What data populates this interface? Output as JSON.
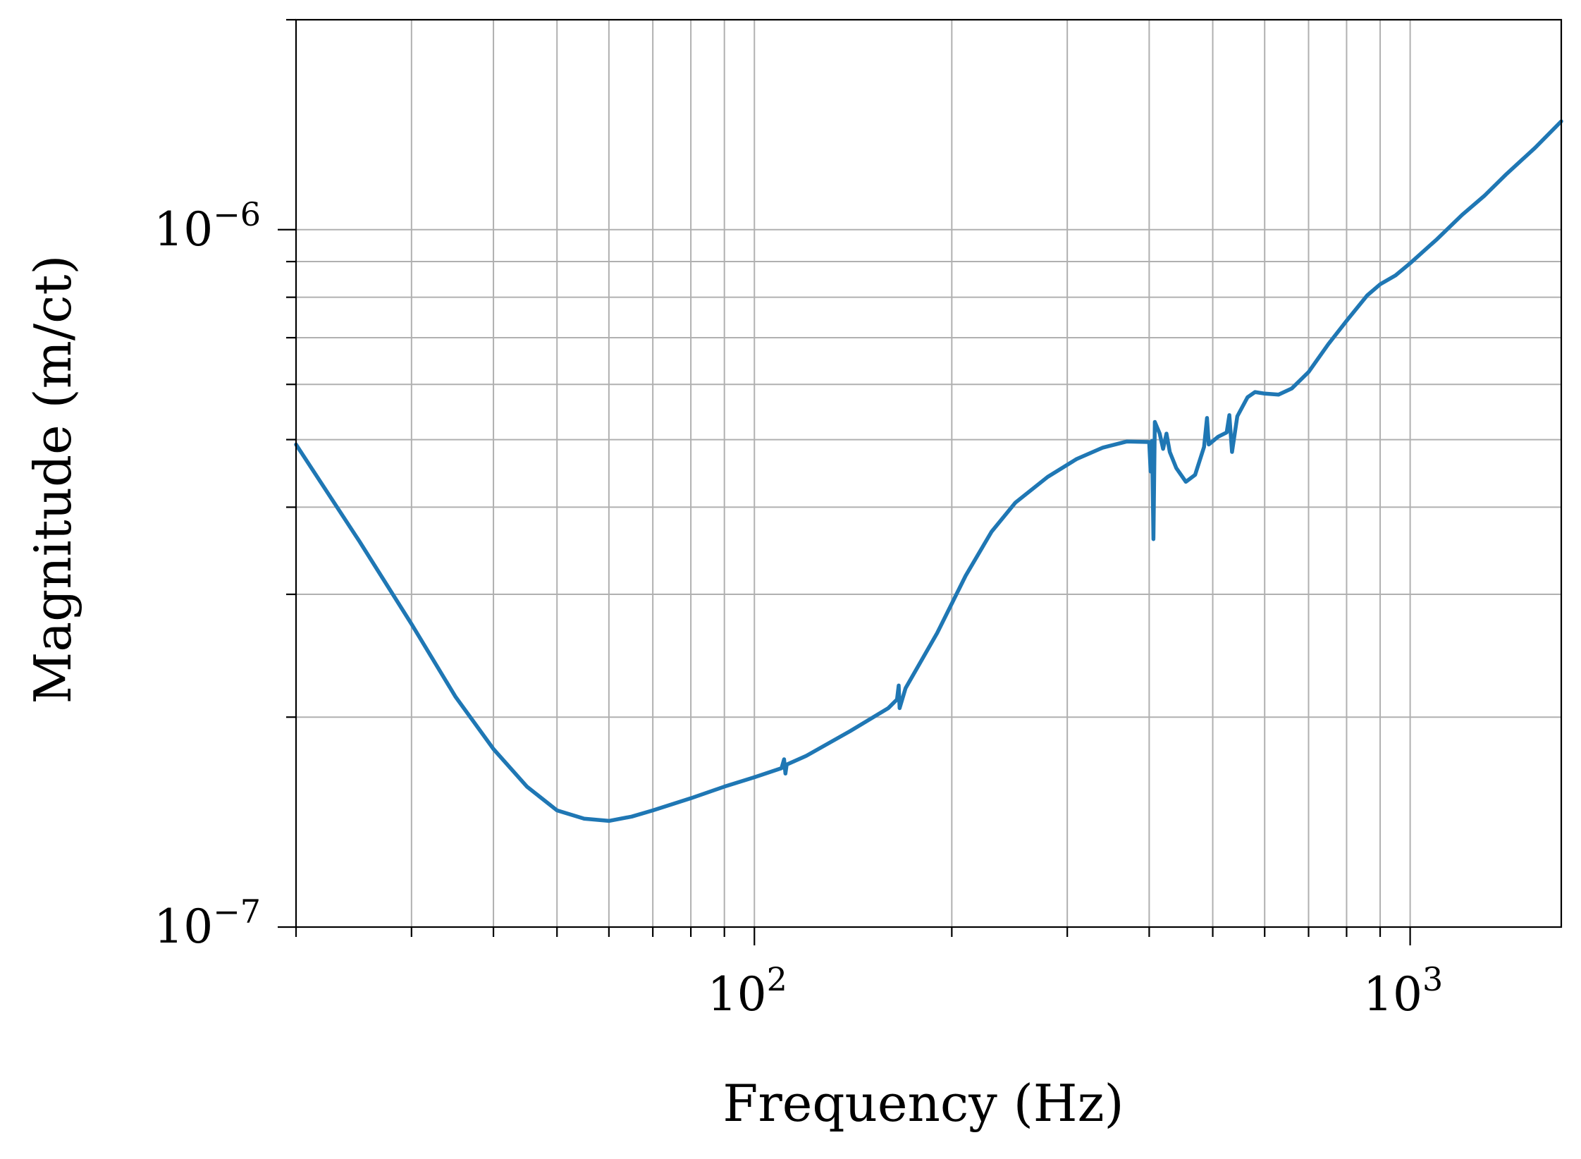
{
  "chart_data": {
    "type": "line",
    "title": "",
    "xlabel": "Frequency (Hz)",
    "ylabel": "Magnitude (m/ct)",
    "xscale": "log",
    "yscale": "log",
    "xlim": [
      20,
      1700
    ],
    "ylim": [
      1e-07,
      2e-06
    ],
    "grid": true,
    "x_ticks": [
      {
        "value": 100,
        "base": "10",
        "exp": "2"
      },
      {
        "value": 1000,
        "base": "10",
        "exp": "3"
      }
    ],
    "y_ticks": [
      {
        "value": 1e-07,
        "base": "10",
        "exp": "−7"
      },
      {
        "value": 1e-06,
        "base": "10",
        "exp": "−6"
      }
    ],
    "series": [
      {
        "color": "#1f77b4",
        "points": [
          [
            20,
            4.92e-07
          ],
          [
            25,
            3.57e-07
          ],
          [
            30,
            2.72e-07
          ],
          [
            35,
            2.14e-07
          ],
          [
            40,
            1.8e-07
          ],
          [
            45,
            1.59e-07
          ],
          [
            50,
            1.47e-07
          ],
          [
            55,
            1.43e-07
          ],
          [
            60,
            1.42e-07
          ],
          [
            65,
            1.44e-07
          ],
          [
            70,
            1.47e-07
          ],
          [
            80,
            1.53e-07
          ],
          [
            90,
            1.59e-07
          ],
          [
            100,
            1.64e-07
          ],
          [
            110,
            1.69e-07
          ],
          [
            111,
            1.74e-07
          ],
          [
            111.5,
            1.66e-07
          ],
          [
            112,
            1.71e-07
          ],
          [
            120,
            1.76e-07
          ],
          [
            140,
            1.91e-07
          ],
          [
            160,
            2.06e-07
          ],
          [
            165,
            2.12e-07
          ],
          [
            166,
            2.22e-07
          ],
          [
            166.5,
            2.06e-07
          ],
          [
            170,
            2.2e-07
          ],
          [
            190,
            2.64e-07
          ],
          [
            210,
            3.19e-07
          ],
          [
            230,
            3.69e-07
          ],
          [
            250,
            4.06e-07
          ],
          [
            280,
            4.42e-07
          ],
          [
            310,
            4.69e-07
          ],
          [
            340,
            4.87e-07
          ],
          [
            370,
            4.97e-07
          ],
          [
            400,
            4.96e-07
          ],
          [
            402,
            4.5e-07
          ],
          [
            404,
            4.98e-07
          ],
          [
            406,
            3.6e-07
          ],
          [
            408,
            5.3e-07
          ],
          [
            415,
            5.1e-07
          ],
          [
            420,
            4.85e-07
          ],
          [
            425,
            5.1e-07
          ],
          [
            430,
            4.8e-07
          ],
          [
            440,
            4.55e-07
          ],
          [
            455,
            4.35e-07
          ],
          [
            470,
            4.45e-07
          ],
          [
            485,
            4.88e-07
          ],
          [
            490,
            5.37e-07
          ],
          [
            493,
            4.92e-07
          ],
          [
            510,
            5.05e-07
          ],
          [
            525,
            5.12e-07
          ],
          [
            530,
            5.42e-07
          ],
          [
            535,
            4.8e-07
          ],
          [
            545,
            5.4e-07
          ],
          [
            565,
            5.75e-07
          ],
          [
            580,
            5.85e-07
          ],
          [
            600,
            5.82e-07
          ],
          [
            630,
            5.8e-07
          ],
          [
            660,
            5.92e-07
          ],
          [
            700,
            6.25e-07
          ],
          [
            750,
            6.85e-07
          ],
          [
            800,
            7.4e-07
          ],
          [
            860,
            8.05e-07
          ],
          [
            900,
            8.35e-07
          ],
          [
            950,
            8.6e-07
          ],
          [
            1000,
            8.95e-07
          ],
          [
            1100,
            9.7e-07
          ],
          [
            1200,
            1.05e-06
          ],
          [
            1300,
            1.12e-06
          ],
          [
            1400,
            1.2e-06
          ],
          [
            1550,
            1.31e-06
          ],
          [
            1700,
            1.43e-06
          ]
        ]
      }
    ]
  }
}
